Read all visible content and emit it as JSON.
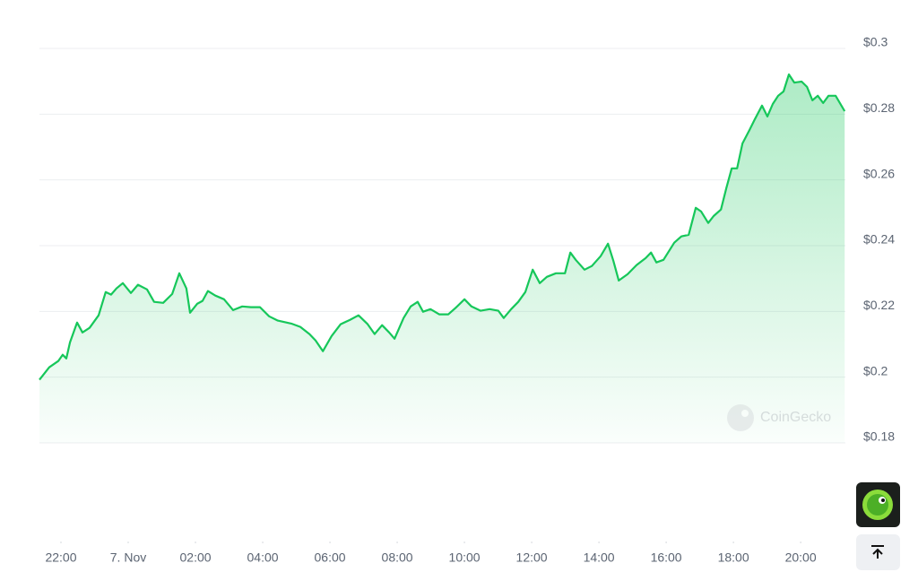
{
  "chart_data": {
    "type": "line",
    "color": "#16c75a",
    "watermark": "CoinGecko",
    "x": [
      -2.64,
      -2.35,
      -2.08,
      -1.95,
      -1.84,
      -1.73,
      -1.52,
      -1.36,
      -1.15,
      -0.88,
      -0.67,
      -0.51,
      -0.35,
      -0.16,
      0.08,
      0.29,
      0.56,
      0.77,
      1.04,
      1.31,
      1.52,
      1.73,
      1.84,
      2.05,
      2.21,
      2.37,
      2.59,
      2.85,
      3.12,
      3.39,
      3.65,
      3.92,
      4.19,
      4.45,
      4.85,
      5.12,
      5.39,
      5.57,
      5.79,
      6.05,
      6.32,
      6.59,
      6.85,
      7.12,
      7.33,
      7.55,
      7.76,
      7.92,
      8.19,
      8.4,
      8.61,
      8.77,
      8.99,
      9.25,
      9.52,
      9.73,
      10.0,
      10.21,
      10.48,
      10.75,
      11.01,
      11.17,
      11.39,
      11.6,
      11.81,
      12.03,
      12.24,
      12.45,
      12.72,
      12.99,
      13.15,
      13.31,
      13.57,
      13.79,
      14.05,
      14.27,
      14.43,
      14.59,
      14.85,
      15.12,
      15.39,
      15.55,
      15.71,
      15.92,
      16.24,
      16.45,
      16.67,
      16.88,
      17.04,
      17.25,
      17.41,
      17.63,
      17.79,
      17.95,
      18.11,
      18.27,
      18.48,
      18.64,
      18.85,
      19.01,
      19.17,
      19.33,
      19.49,
      19.65,
      19.81,
      20.03,
      20.19,
      20.35,
      20.51,
      20.67,
      20.83,
      21.04,
      21.31
    ],
    "values": [
      0.1992,
      0.203,
      0.2049,
      0.2068,
      0.2057,
      0.2106,
      0.2166,
      0.2136,
      0.215,
      0.2188,
      0.2259,
      0.2251,
      0.227,
      0.2286,
      0.2256,
      0.2281,
      0.2267,
      0.2229,
      0.2226,
      0.2253,
      0.2316,
      0.227,
      0.2196,
      0.2223,
      0.2232,
      0.2262,
      0.2248,
      0.2237,
      0.2204,
      0.2215,
      0.2213,
      0.2213,
      0.2185,
      0.2172,
      0.2163,
      0.2153,
      0.2131,
      0.2112,
      0.2079,
      0.2125,
      0.2161,
      0.2174,
      0.2188,
      0.2161,
      0.2131,
      0.2158,
      0.2136,
      0.2117,
      0.218,
      0.2215,
      0.2229,
      0.2199,
      0.2207,
      0.2191,
      0.2191,
      0.221,
      0.2237,
      0.2215,
      0.2202,
      0.2207,
      0.2202,
      0.218,
      0.2207,
      0.2229,
      0.2259,
      0.2327,
      0.2286,
      0.2305,
      0.2316,
      0.2316,
      0.2379,
      0.2357,
      0.2327,
      0.2338,
      0.2368,
      0.2406,
      0.2354,
      0.2294,
      0.2313,
      0.2341,
      0.2362,
      0.2379,
      0.2349,
      0.2357,
      0.2409,
      0.2428,
      0.2433,
      0.2515,
      0.2504,
      0.2469,
      0.249,
      0.251,
      0.2575,
      0.2635,
      0.2635,
      0.2711,
      0.2752,
      0.2785,
      0.2826,
      0.2793,
      0.2831,
      0.2856,
      0.2869,
      0.2921,
      0.2896,
      0.2899,
      0.2883,
      0.2842,
      0.2856,
      0.2834,
      0.2856,
      0.2856,
      0.2809
    ],
    "xlim": [
      -2.64,
      21.33
    ],
    "xticks": [
      {
        "value": -2,
        "label": "22:00"
      },
      {
        "value": 0,
        "label": "7. Nov"
      },
      {
        "value": 2,
        "label": "02:00"
      },
      {
        "value": 4,
        "label": "04:00"
      },
      {
        "value": 6,
        "label": "06:00"
      },
      {
        "value": 8,
        "label": "08:00"
      },
      {
        "value": 10,
        "label": "10:00"
      },
      {
        "value": 12,
        "label": "12:00"
      },
      {
        "value": 14,
        "label": "14:00"
      },
      {
        "value": 16,
        "label": "16:00"
      },
      {
        "value": 18,
        "label": "18:00"
      },
      {
        "value": 20,
        "label": "20:00"
      }
    ],
    "ylim": [
      0.18,
      0.3
    ],
    "yticks": [
      {
        "value": 0.18,
        "label": "$0.18"
      },
      {
        "value": 0.2,
        "label": "$0.2"
      },
      {
        "value": 0.22,
        "label": "$0.22"
      },
      {
        "value": 0.24,
        "label": "$0.24"
      },
      {
        "value": 0.26,
        "label": "$0.26"
      },
      {
        "value": 0.28,
        "label": "$0.28"
      },
      {
        "value": 0.3,
        "label": "$0.3"
      }
    ],
    "grid": true
  }
}
